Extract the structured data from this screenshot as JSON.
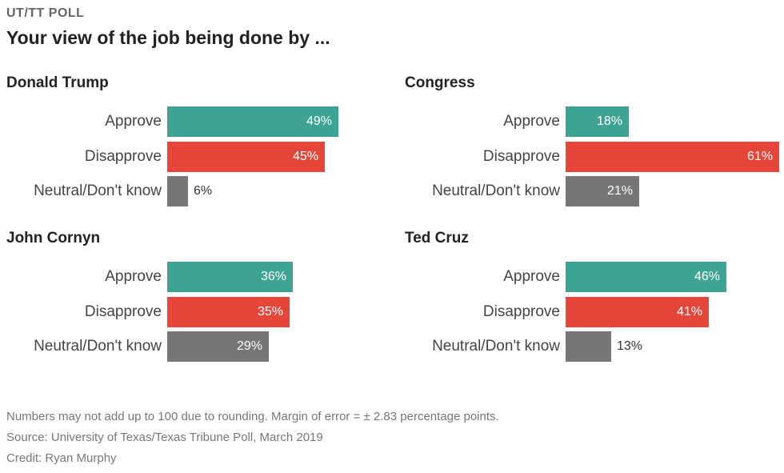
{
  "header": {
    "eyebrow": "UT/TT POLL",
    "title": "Your view of the job being done by ..."
  },
  "colors": {
    "Approve": "#3da493",
    "Disapprove": "#e6453a",
    "Neutral/Don't know": "#767676"
  },
  "chart_data": [
    {
      "type": "bar",
      "orientation": "horizontal",
      "title": "Donald Trump",
      "categories": [
        "Approve",
        "Disapprove",
        "Neutral/Don't know"
      ],
      "values": [
        49,
        45,
        6
      ],
      "labels": [
        "49%",
        "45%",
        "6%"
      ]
    },
    {
      "type": "bar",
      "orientation": "horizontal",
      "title": "Congress",
      "categories": [
        "Approve",
        "Disapprove",
        "Neutral/Don't know"
      ],
      "values": [
        18,
        61,
        21
      ],
      "labels": [
        "18%",
        "61%",
        "21%"
      ]
    },
    {
      "type": "bar",
      "orientation": "horizontal",
      "title": "John Cornyn",
      "categories": [
        "Approve",
        "Disapprove",
        "Neutral/Don't know"
      ],
      "values": [
        36,
        35,
        29
      ],
      "labels": [
        "36%",
        "35%",
        "29%"
      ]
    },
    {
      "type": "bar",
      "orientation": "horizontal",
      "title": "Ted Cruz",
      "categories": [
        "Approve",
        "Disapprove",
        "Neutral/Don't know"
      ],
      "values": [
        46,
        41,
        13
      ],
      "labels": [
        "46%",
        "41%",
        "13%"
      ]
    }
  ],
  "footer": {
    "note": "Numbers may not add up to 100 due to rounding. Margin of error = ± 2.83 percentage points.",
    "source": "Source: University of Texas/Texas Tribune Poll, March 2019",
    "credit": "Credit: Ryan Murphy"
  }
}
